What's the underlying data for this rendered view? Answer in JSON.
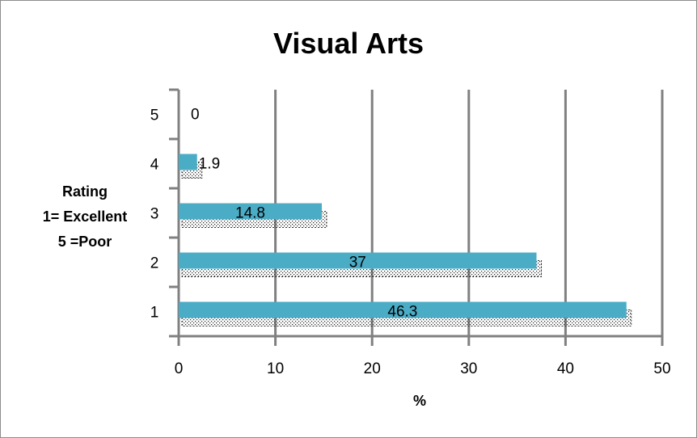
{
  "chart_data": {
    "type": "bar",
    "orientation": "horizontal",
    "title": "Visual Arts",
    "xlabel": "%",
    "ylabel_lines": [
      "Rating",
      "1= Excellent",
      "5 =Poor"
    ],
    "categories": [
      "1",
      "2",
      "3",
      "4",
      "5"
    ],
    "values": [
      46.3,
      37,
      14.8,
      1.9,
      0
    ],
    "value_labels": [
      "46.3",
      "37",
      "14.8",
      "1.9",
      "0"
    ],
    "xlim": [
      0,
      50
    ],
    "xticks": [
      "0",
      "10",
      "20",
      "30",
      "40",
      "50"
    ],
    "grid": "vertical",
    "bar_color": "#4bacc6",
    "shadow_pattern": "dotted",
    "legend": "none"
  }
}
